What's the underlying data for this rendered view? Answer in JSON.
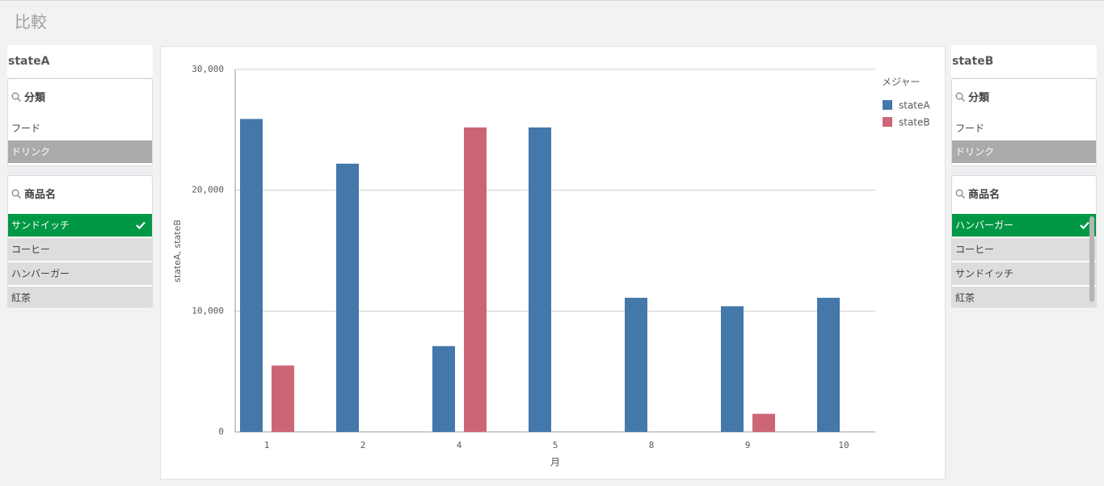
{
  "header": {
    "title": "比較"
  },
  "panels": [
    {
      "title": "stateA",
      "filters": [
        {
          "label": "分類",
          "items": [
            "フード",
            "ドリンク"
          ]
        },
        {
          "label": "商品名",
          "items": [
            "サンドイッチ",
            "コーヒー",
            "ハンバーガー",
            "紅茶"
          ]
        }
      ]
    },
    {
      "title": "stateB",
      "filters": [
        {
          "label": "分類",
          "items": [
            "フード",
            "ドリンク"
          ]
        },
        {
          "label": "商品名",
          "items": [
            "ハンバーガー",
            "コーヒー",
            "サンドイッチ",
            "紅茶"
          ]
        }
      ]
    }
  ],
  "chart_data": {
    "type": "bar",
    "categories": [
      "1",
      "2",
      "4",
      "5",
      "8",
      "9",
      "10"
    ],
    "x_label": "月",
    "y_label": "stateA, stateB",
    "legend_title": "メジャー",
    "series": [
      {
        "name": "stateA",
        "color": "#4477aa",
        "values": [
          25900,
          22200,
          7100,
          25200,
          11100,
          10400,
          11100
        ]
      },
      {
        "name": "stateB",
        "color": "#cc6677",
        "values": [
          5500,
          0,
          25200,
          0,
          0,
          1500,
          0
        ]
      }
    ],
    "ylim": [
      0,
      30000
    ],
    "yticks": [
      0,
      {
        "value": 10000,
        "label": "10,000"
      },
      {
        "value": 20000,
        "label": "20,000"
      },
      {
        "value": 30000,
        "label": "30,000"
      }
    ],
    "grid": true,
    "legend": "right"
  }
}
